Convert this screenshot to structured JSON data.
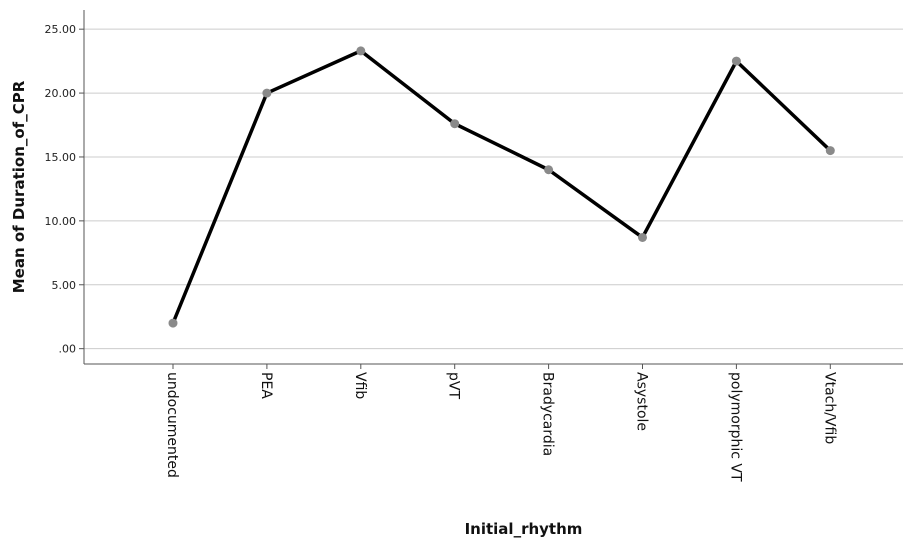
{
  "chart_data": {
    "type": "line",
    "title": "",
    "xlabel": "Initial_rhythm",
    "ylabel": "Mean of Duration_of_CPR",
    "categories": [
      "undocumented",
      "PEA",
      "Vfib",
      "pVT",
      "Bradycardia",
      "Asystole",
      "polymorphic VT",
      "Vtach/Vfib"
    ],
    "series": [
      {
        "values": [
          2.0,
          20.0,
          23.3,
          17.6,
          14.0,
          8.7,
          22.5,
          15.5
        ]
      }
    ],
    "y_ticks": [
      ".00",
      "5.00",
      "10.00",
      "15.00",
      "20.00",
      "25.00"
    ],
    "ylim": [
      -1.2,
      26.5
    ],
    "grid": true,
    "colors": {
      "line": "#000000",
      "marker": "#8a8a8a",
      "grid": "#cccccc",
      "axis": "#555555"
    }
  }
}
